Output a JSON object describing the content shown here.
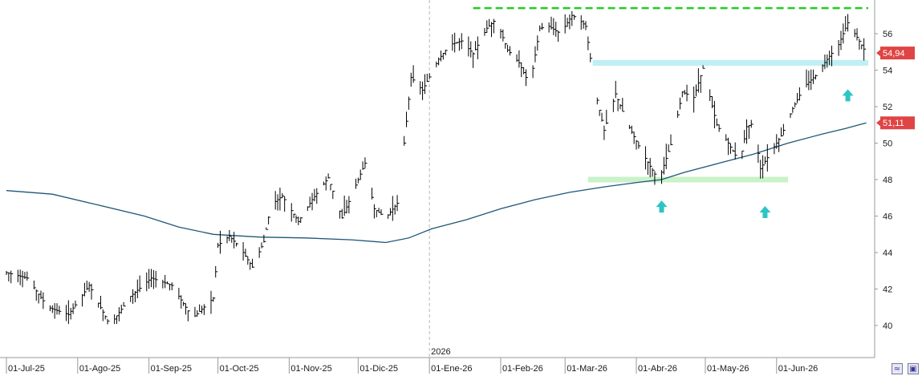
{
  "chart_data": {
    "type": "line",
    "title": "",
    "xlabel": "",
    "ylabel": "",
    "ylim": [
      38.6,
      58.7
    ],
    "y_ticks": [
      "40",
      "42",
      "44",
      "46",
      "48",
      "50",
      "52",
      "54",
      "56"
    ],
    "x_ticks": [
      "01-Jul-25",
      "01-Ago-25",
      "01-Sep-25",
      "01-Oct-25",
      "01-Nov-25",
      "01-Dic-25",
      "01-Ene-26",
      "01-Feb-26",
      "01-Mar-26",
      "01-Abr-26",
      "01-May-26",
      "01-Jun-26"
    ],
    "year_marker": "2026",
    "grid": false,
    "price_tags": [
      {
        "text": "54,94",
        "value": 54.94,
        "color": "#e04444"
      },
      {
        "text": "51,11",
        "value": 51.11,
        "color": "#e04444"
      }
    ],
    "series": [
      {
        "name": "",
        "kind": "ohlc-bars",
        "color": "#000000",
        "anchors": [
          [
            0,
            42.9
          ],
          [
            9,
            42.6
          ],
          [
            18,
            41.0
          ],
          [
            27,
            40.6
          ],
          [
            36,
            42.2
          ],
          [
            45,
            40.0
          ],
          [
            54,
            41.6
          ],
          [
            63,
            42.6
          ],
          [
            72,
            42.2
          ],
          [
            81,
            40.4
          ],
          [
            90,
            41.5
          ],
          [
            92,
            44.4
          ],
          [
            97,
            44.9
          ],
          [
            102,
            44.2
          ],
          [
            107,
            43.2
          ],
          [
            112,
            44.6
          ],
          [
            115,
            46.6
          ],
          [
            120,
            47.1
          ],
          [
            127,
            45.7
          ],
          [
            133,
            46.9
          ],
          [
            140,
            48.1
          ],
          [
            146,
            45.9
          ],
          [
            151,
            47.4
          ],
          [
            156,
            48.9
          ],
          [
            160,
            46.4
          ],
          [
            165,
            45.9
          ],
          [
            170,
            46.7
          ],
          [
            173,
            50.0
          ],
          [
            176,
            53.6
          ],
          [
            181,
            52.9
          ],
          [
            188,
            54.6
          ],
          [
            193,
            55.4
          ],
          [
            198,
            55.6
          ],
          [
            203,
            54.9
          ],
          [
            209,
            56.3
          ],
          [
            213,
            56.8
          ],
          [
            218,
            55.1
          ],
          [
            223,
            54.4
          ],
          [
            226,
            53.6
          ],
          [
            229,
            54.1
          ],
          [
            232,
            56.3
          ],
          [
            236,
            56.4
          ],
          [
            241,
            56.0
          ],
          [
            246,
            57.0
          ],
          [
            249,
            56.8
          ],
          [
            252,
            56.4
          ],
          [
            256,
            52.9
          ],
          [
            260,
            50.7
          ],
          [
            265,
            52.7
          ],
          [
            270,
            51.1
          ],
          [
            276,
            49.6
          ],
          [
            282,
            48.3
          ],
          [
            285,
            48.4
          ],
          [
            290,
            50.3
          ],
          [
            294,
            52.8
          ],
          [
            299,
            52.5
          ],
          [
            303,
            54.1
          ],
          [
            309,
            51.0
          ],
          [
            314,
            50.0
          ],
          [
            319,
            48.9
          ],
          [
            322,
            50.9
          ],
          [
            325,
            51.1
          ],
          [
            328,
            48.6
          ],
          [
            332,
            49.4
          ],
          [
            337,
            50.4
          ],
          [
            342,
            51.9
          ],
          [
            347,
            53.1
          ],
          [
            352,
            53.7
          ],
          [
            357,
            54.6
          ],
          [
            362,
            55.4
          ],
          [
            366,
            56.6
          ],
          [
            370,
            55.8
          ],
          [
            374,
            54.94
          ]
        ]
      },
      {
        "name": "",
        "kind": "moving-average",
        "color": "#1f5577",
        "points": [
          [
            0,
            47.4
          ],
          [
            20,
            47.2
          ],
          [
            40,
            46.6
          ],
          [
            60,
            46.0
          ],
          [
            75,
            45.4
          ],
          [
            90,
            45.0
          ],
          [
            110,
            44.85
          ],
          [
            130,
            44.8
          ],
          [
            150,
            44.7
          ],
          [
            160,
            44.6
          ],
          [
            165,
            44.55
          ],
          [
            175,
            44.8
          ],
          [
            185,
            45.3
          ],
          [
            200,
            45.8
          ],
          [
            215,
            46.4
          ],
          [
            230,
            46.9
          ],
          [
            245,
            47.3
          ],
          [
            260,
            47.6
          ],
          [
            275,
            47.85
          ],
          [
            285,
            48.0
          ],
          [
            295,
            48.4
          ],
          [
            310,
            48.9
          ],
          [
            325,
            49.4
          ],
          [
            340,
            50.0
          ],
          [
            355,
            50.5
          ],
          [
            365,
            50.8
          ],
          [
            374,
            51.11
          ]
        ]
      }
    ],
    "overlays": [
      {
        "kind": "resistance-line",
        "color": "#22cc22",
        "style": "dashed",
        "value": 57.4,
        "from_day": 203,
        "to_day": 375
      },
      {
        "kind": "resistance-zone",
        "color": "#bfeef4",
        "value": 54.4,
        "from_day": 255,
        "to_day": 375
      },
      {
        "kind": "support-zone",
        "color": "#c9f2c9",
        "value": 48.0,
        "from_day": 253,
        "to_day": 340
      }
    ],
    "markers": [
      {
        "kind": "up-arrow",
        "color": "#2ec4c4",
        "day": 285,
        "value": 46.5
      },
      {
        "kind": "up-arrow",
        "color": "#2ec4c4",
        "day": 330,
        "value": 46.2
      },
      {
        "kind": "up-arrow",
        "color": "#2ec4c4",
        "day": 366,
        "value": 52.6
      }
    ]
  },
  "toolbar": {
    "chart_type_icon": "wave-chart-icon",
    "save_icon": "floppy-disk-icon"
  }
}
